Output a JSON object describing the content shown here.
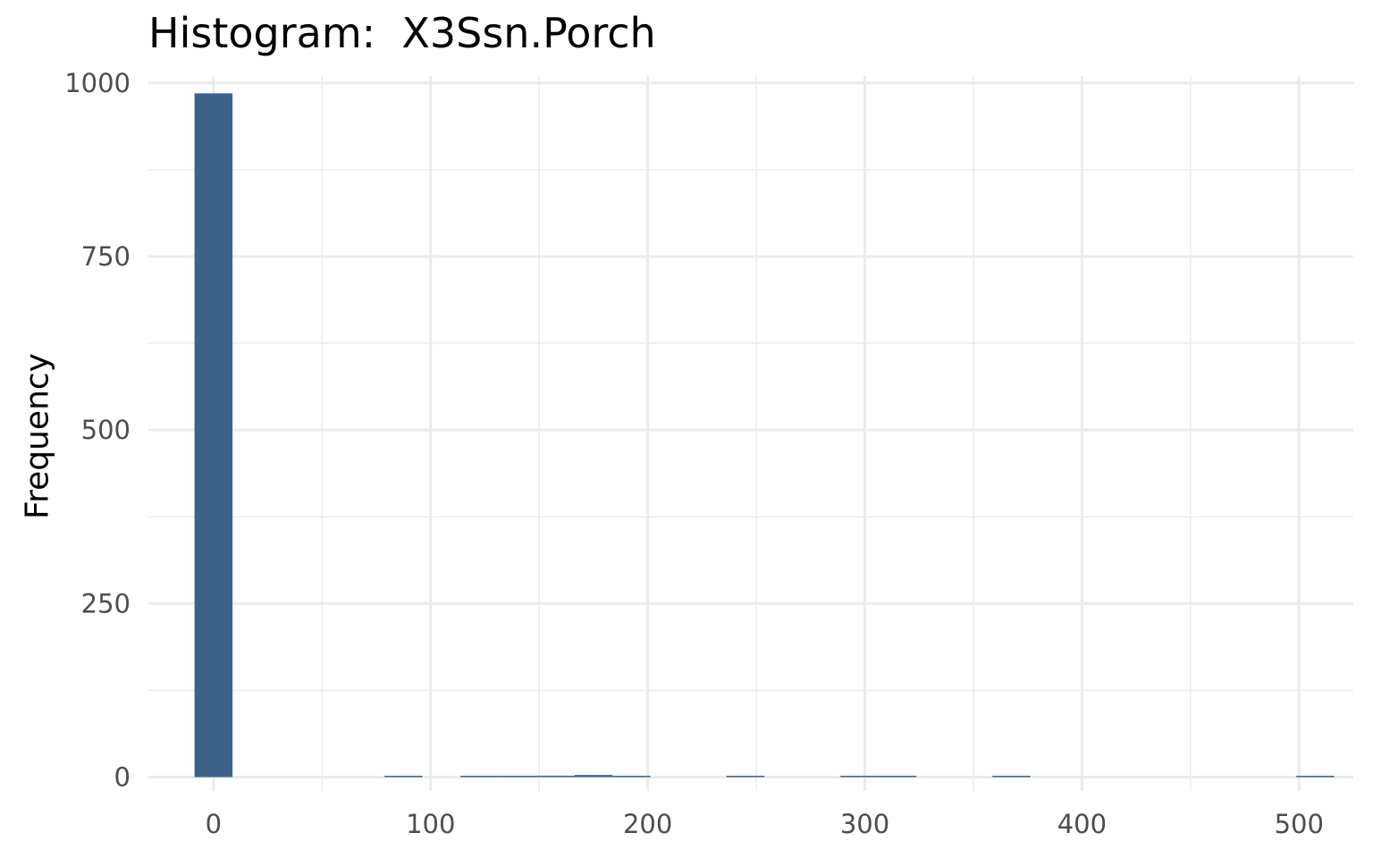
{
  "chart_data": {
    "type": "bar",
    "title": "Histogram:  X3Ssn.Porch",
    "xlabel": "",
    "ylabel": "Frequency",
    "xlim": [
      -30,
      525
    ],
    "ylim": [
      -20,
      1010
    ],
    "x_ticks": [
      0,
      100,
      200,
      300,
      400,
      500
    ],
    "y_ticks": [
      0,
      250,
      500,
      750,
      1000
    ],
    "bin_width": 17.5,
    "bins": [
      {
        "x0": -8.75,
        "x1": 8.75,
        "count": 985
      },
      {
        "x0": 78.75,
        "x1": 96.25,
        "count": 1
      },
      {
        "x0": 113.75,
        "x1": 131.25,
        "count": 1
      },
      {
        "x0": 131.25,
        "x1": 148.75,
        "count": 1
      },
      {
        "x0": 148.75,
        "x1": 166.25,
        "count": 2
      },
      {
        "x0": 166.25,
        "x1": 183.75,
        "count": 3
      },
      {
        "x0": 183.75,
        "x1": 201.25,
        "count": 1
      },
      {
        "x0": 236.25,
        "x1": 253.75,
        "count": 1
      },
      {
        "x0": 288.75,
        "x1": 306.25,
        "count": 1
      },
      {
        "x0": 306.25,
        "x1": 323.75,
        "count": 1
      },
      {
        "x0": 358.75,
        "x1": 376.25,
        "count": 1
      },
      {
        "x0": 498.75,
        "x1": 516.25,
        "count": 1
      }
    ],
    "bar_color": "#3A6389",
    "grid": true
  }
}
